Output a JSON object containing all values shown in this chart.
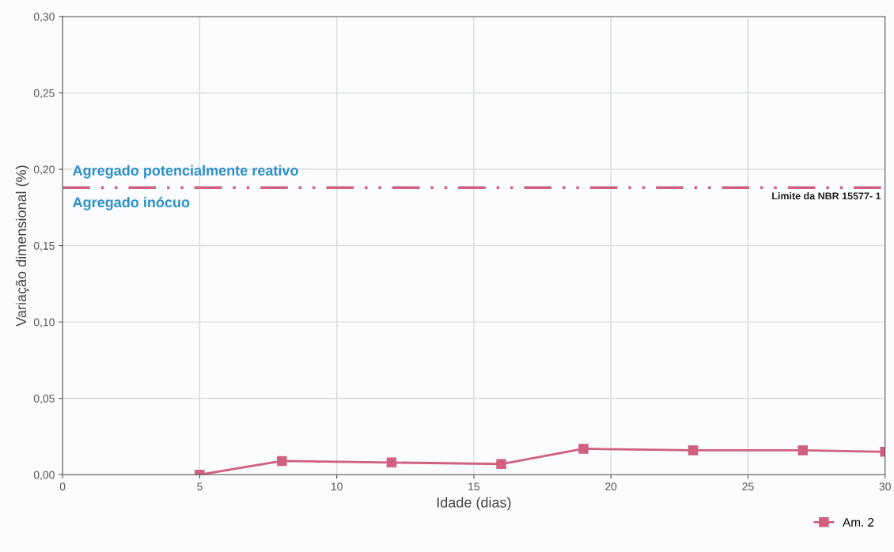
{
  "chart_data": {
    "type": "line",
    "xlabel": "Idade (dias)",
    "ylabel": "Variação dimensional (%)",
    "x": [
      5,
      8,
      12,
      16,
      19,
      23,
      27,
      30
    ],
    "series": [
      {
        "name": "Am. 2",
        "color": "#d0607f",
        "values": [
          0,
          0.009,
          0.008,
          0.007,
          0.017,
          0.016,
          0.016,
          0.015
        ]
      }
    ],
    "xlim": [
      0,
      30
    ],
    "xticks": [
      0,
      5,
      10,
      15,
      20,
      25,
      30
    ],
    "ylim": [
      0,
      0.3
    ],
    "yticks": [
      {
        "value": 0,
        "label": "0,00"
      },
      {
        "value": 0.05,
        "label": "0,05"
      },
      {
        "value": 0.1,
        "label": "0,10"
      },
      {
        "value": 0.15,
        "label": "0,15"
      },
      {
        "value": 0.2,
        "label": "0,20"
      },
      {
        "value": 0.25,
        "label": "0,25"
      },
      {
        "value": 0.3,
        "label": "0,30"
      }
    ],
    "ref_lines": [
      {
        "axis": "y",
        "value": 0.188,
        "label": "Limite da NBR 15577- 1",
        "color": "#d0607f",
        "line_style": "dashdotdot"
      }
    ],
    "annotations": [
      "Agregado potencialmente reativo",
      "Agregado inócuo"
    ],
    "grid": true,
    "legend": "bottom right",
    "marker": "square",
    "line_style": "solid"
  }
}
